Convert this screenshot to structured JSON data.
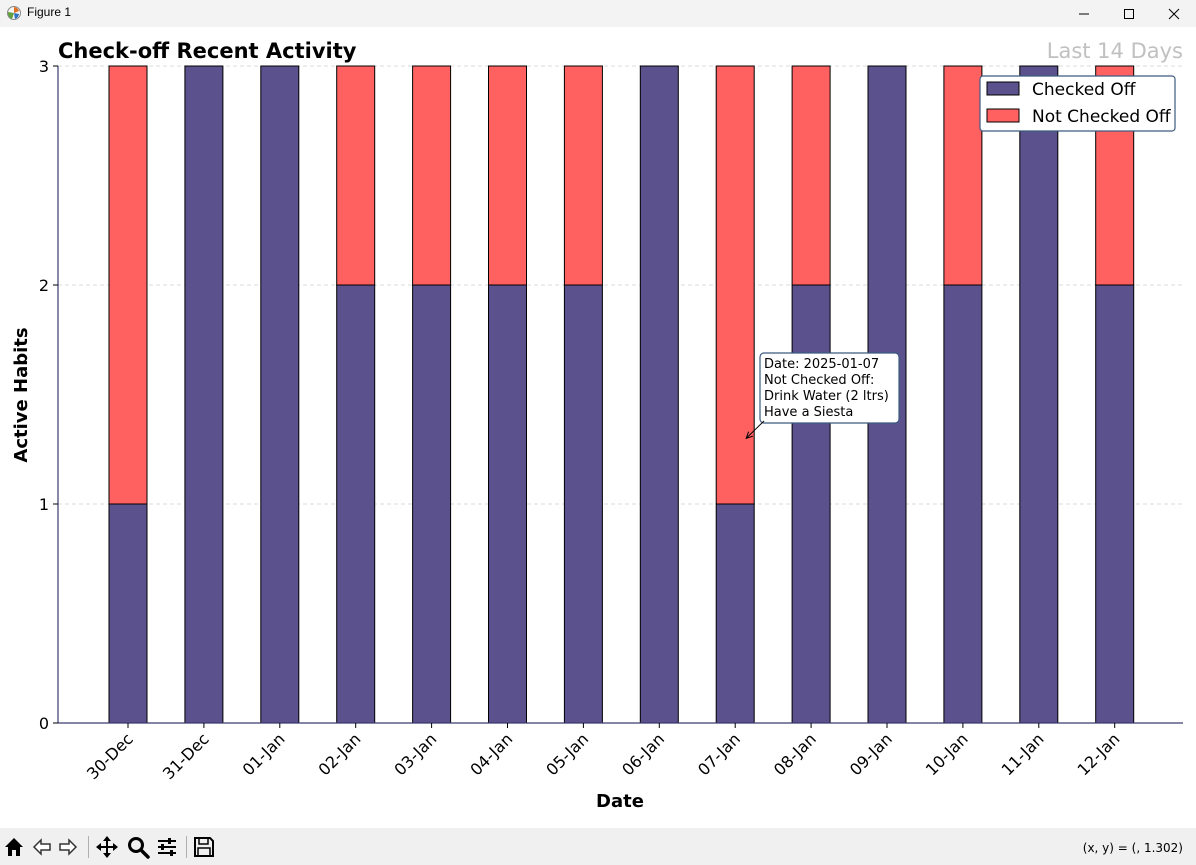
{
  "window": {
    "title": "Figure 1",
    "icon": "matplotlib-icon",
    "controls": [
      "minimize-icon",
      "maximize-icon",
      "close-icon"
    ]
  },
  "toolbar": {
    "buttons": [
      "home-icon",
      "back-icon",
      "forward-icon",
      "pan-icon",
      "zoom-icon",
      "configure-icon",
      "save-icon"
    ],
    "coords": "(x, y) = (, 1.302)"
  },
  "colors": {
    "checked": "#5b518d",
    "not_checked": "#ff6161",
    "subtitle": "#c0c0c0",
    "legend_border": "#3d5a80"
  },
  "chart_data": {
    "type": "bar",
    "stacked": true,
    "title": "Check-off Recent Activity",
    "subtitle": "Last 14 Days",
    "xlabel": "Date",
    "ylabel": "Active Habits",
    "ylim": [
      0,
      3
    ],
    "yticks": [
      0,
      1,
      2,
      3
    ],
    "grid": "horizontal dashed",
    "legend_position": "top-right",
    "categories": [
      "30-Dec",
      "31-Dec",
      "01-Jan",
      "02-Jan",
      "03-Jan",
      "04-Jan",
      "05-Jan",
      "06-Jan",
      "07-Jan",
      "08-Jan",
      "09-Jan",
      "10-Jan",
      "11-Jan",
      "12-Jan"
    ],
    "series": [
      {
        "name": "Checked Off",
        "values": [
          1,
          3,
          3,
          2,
          2,
          2,
          2,
          3,
          1,
          2,
          3,
          2,
          3,
          2
        ]
      },
      {
        "name": "Not Checked Off",
        "values": [
          2,
          0,
          0,
          1,
          1,
          1,
          1,
          0,
          2,
          1,
          0,
          1,
          0,
          1
        ]
      }
    ],
    "annotation": {
      "category": "07-Jan",
      "y": 1.3,
      "lines": [
        "Date: 2025-01-07",
        "Not Checked Off:",
        "Drink Water (2 ltrs)",
        "Have a Siesta"
      ]
    }
  }
}
